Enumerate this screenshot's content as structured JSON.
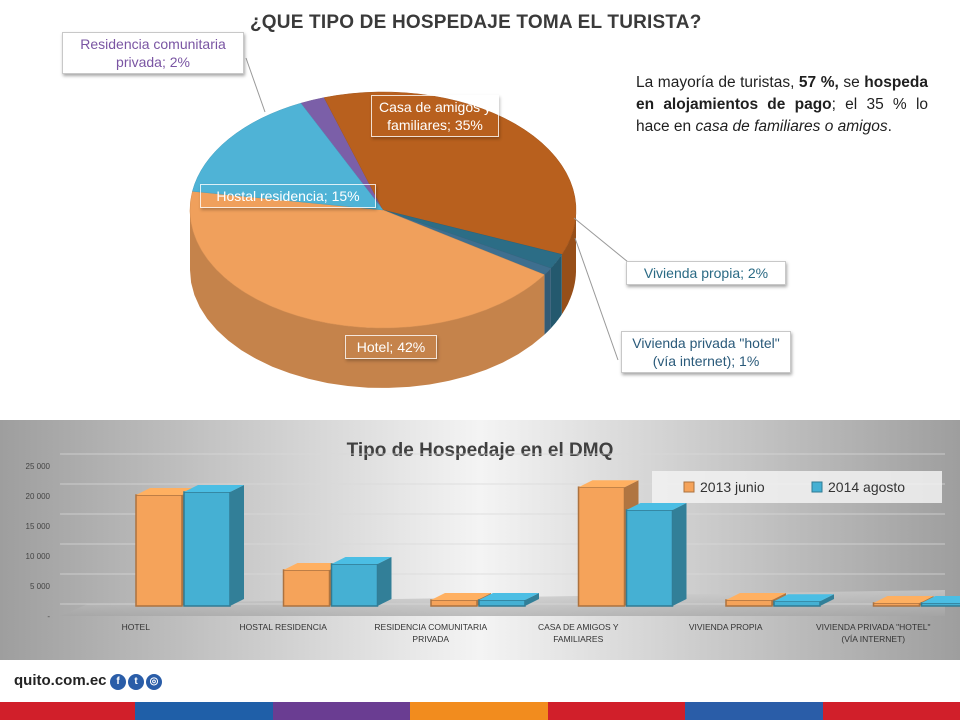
{
  "pie": {
    "title": "¿QUE TIPO DE HOSPEDAJE TOMA EL TURISTA?",
    "slices": [
      {
        "label": "Residencia comunitaria privada; 2%",
        "value": 2,
        "color": "#7b5fa8"
      },
      {
        "label": "Casa de amigos y familiares; 35%",
        "value": 35,
        "color": "#b8601e"
      },
      {
        "label": "Vivienda propia; 2%",
        "value": 2,
        "color": "#2c6d86"
      },
      {
        "label": "Vivienda privada \"hotel\" (vía internet); 1%",
        "value": 1,
        "color": "#3e6f8f"
      },
      {
        "label": "Hotel; 42%",
        "value": 42,
        "color": "#f0a05c"
      },
      {
        "label": "Hostal residencia; 15%",
        "value": 15,
        "color": "#4fb3d6"
      }
    ]
  },
  "note": {
    "p1": "La mayoría de turistas, ",
    "b1": "57 %,",
    "p2": " se ",
    "b2": "hospeda en alojamientos de pago",
    "p3": "; el 35 % lo hace en ",
    "i1": "casa de familiares o amigos",
    "p4": "."
  },
  "chart_data": {
    "type": "bar",
    "title": "Tipo de Hospedaje en el DMQ",
    "categories": [
      "HOTEL",
      "HOSTAL RESIDENCIA",
      "RESIDENCIA COMUNITARIA PRIVADA",
      "CASA DE AMIGOS Y FAMILIARES",
      "VIVIENDA PROPIA",
      "VIVIENDA PRIVADA \"HOTEL\" (VÍA INTERNET)"
    ],
    "series": [
      {
        "name": "2013 junio",
        "values": [
          18500,
          6000,
          1000,
          19800,
          1000,
          0
        ],
        "color": "#f5a35a"
      },
      {
        "name": "2014 agosto",
        "values": [
          19000,
          7000,
          1000,
          16000,
          800,
          300
        ],
        "color": "#45b0d3"
      }
    ],
    "y_ticks": [
      "25 000",
      "20 000",
      "15 000",
      "10 000",
      "5 000",
      "-"
    ],
    "ylim": [
      0,
      25000
    ],
    "legend": "top-right",
    "grid": true
  },
  "footer": {
    "site": "quito.com.ec",
    "icons": [
      "facebook-icon",
      "twitter-icon",
      "instagram-icon"
    ]
  }
}
